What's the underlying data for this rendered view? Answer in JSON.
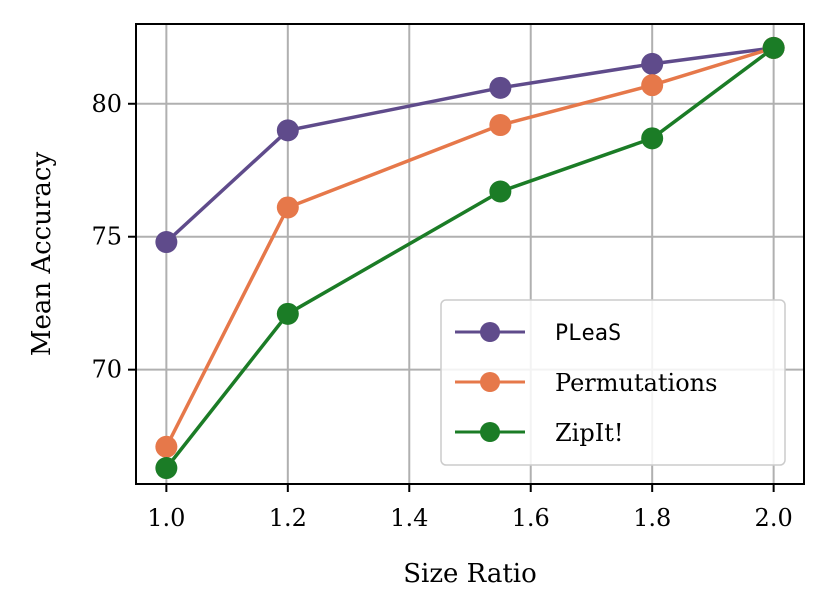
{
  "chart_data": {
    "type": "line",
    "title": "",
    "xlabel": "Size Ratio",
    "ylabel": "Mean Accuracy",
    "x": [
      1.0,
      1.2,
      1.55,
      1.8,
      2.0
    ],
    "xlim": [
      0.95,
      2.05
    ],
    "ylim": [
      65.7,
      83.0
    ],
    "xticks": [
      1.0,
      1.2,
      1.4,
      1.6,
      1.8,
      2.0
    ],
    "xtick_labels": [
      "1.0",
      "1.2",
      "1.4",
      "1.6",
      "1.8",
      "2.0"
    ],
    "yticks": [
      70,
      75,
      80
    ],
    "ytick_labels": [
      "70",
      "75",
      "80"
    ],
    "grid": true,
    "legend_position": "lower-right",
    "series": [
      {
        "name": "PLeaS",
        "color": "#5f4b8b",
        "values": [
          74.8,
          79.0,
          80.6,
          81.5,
          82.1
        ]
      },
      {
        "name": "Permutations",
        "color": "#e6784a",
        "values": [
          67.1,
          76.1,
          79.2,
          80.7,
          82.1
        ]
      },
      {
        "name": "ZipIt!",
        "color": "#1b7c26",
        "values": [
          66.3,
          72.1,
          76.7,
          78.7,
          82.1
        ]
      }
    ]
  }
}
